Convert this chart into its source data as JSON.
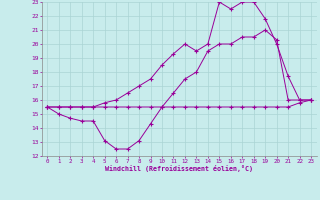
{
  "xlabel": "Windchill (Refroidissement éolien,°C)",
  "ylabel": "",
  "xlim": [
    -0.5,
    23.5
  ],
  "ylim": [
    12,
    23
  ],
  "xticks": [
    0,
    1,
    2,
    3,
    4,
    5,
    6,
    7,
    8,
    9,
    10,
    11,
    12,
    13,
    14,
    15,
    16,
    17,
    18,
    19,
    20,
    21,
    22,
    23
  ],
  "yticks": [
    12,
    13,
    14,
    15,
    16,
    17,
    18,
    19,
    20,
    21,
    22,
    23
  ],
  "bg_color": "#c8ecec",
  "line_color": "#990099",
  "grid_color": "#aad4d4",
  "line1_x": [
    0,
    1,
    2,
    3,
    4,
    5,
    6,
    7,
    8,
    9,
    10,
    11,
    12,
    13,
    14,
    15,
    16,
    17,
    18,
    19,
    20,
    21,
    22,
    23
  ],
  "line1_y": [
    15.5,
    15.0,
    14.7,
    14.5,
    14.5,
    13.1,
    12.5,
    12.5,
    13.1,
    14.3,
    15.5,
    16.5,
    17.5,
    18.0,
    19.5,
    20.0,
    20.0,
    20.5,
    20.5,
    21.0,
    20.3,
    16.0,
    16.0,
    16.0
  ],
  "line2_x": [
    0,
    1,
    2,
    3,
    4,
    5,
    6,
    7,
    8,
    9,
    10,
    11,
    12,
    13,
    14,
    15,
    16,
    17,
    18,
    19,
    20,
    21,
    22,
    23
  ],
  "line2_y": [
    15.5,
    15.5,
    15.5,
    15.5,
    15.5,
    15.5,
    15.5,
    15.5,
    15.5,
    15.5,
    15.5,
    15.5,
    15.5,
    15.5,
    15.5,
    15.5,
    15.5,
    15.5,
    15.5,
    15.5,
    15.5,
    15.5,
    15.8,
    16.0
  ],
  "line3_x": [
    0,
    1,
    2,
    3,
    4,
    5,
    6,
    7,
    8,
    9,
    10,
    11,
    12,
    13,
    14,
    15,
    16,
    17,
    18,
    19,
    20,
    21,
    22,
    23
  ],
  "line3_y": [
    15.5,
    15.5,
    15.5,
    15.5,
    15.5,
    15.8,
    16.0,
    16.5,
    17.0,
    17.5,
    18.5,
    19.3,
    20.0,
    19.5,
    20.0,
    23.0,
    22.5,
    23.0,
    23.0,
    21.8,
    20.0,
    17.7,
    16.0,
    16.0
  ]
}
